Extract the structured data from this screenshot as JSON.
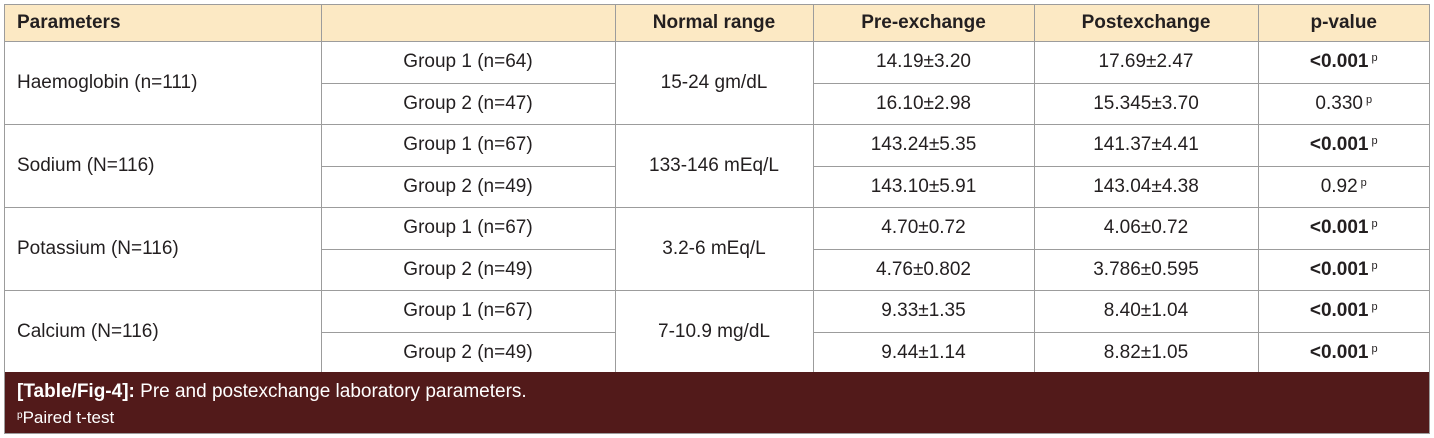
{
  "table": {
    "headers": [
      "Parameters",
      "",
      "Normal range",
      "Pre-exchange",
      "Postexchange",
      "p-value"
    ],
    "groups": [
      {
        "parameter": "Haemoglobin (n=111)",
        "normal_range": "15-24 gm/dL",
        "rows": [
          {
            "group": "Group 1 (n=64)",
            "pre": "14.19±3.20",
            "post": "17.69±2.47",
            "p": "<0.001",
            "significant": true,
            "mark": "p"
          },
          {
            "group": "Group 2 (n=47)",
            "pre": "16.10±2.98",
            "post": "15.345±3.70",
            "p": "0.330",
            "significant": false,
            "mark": "p"
          }
        ]
      },
      {
        "parameter": "Sodium (N=116)",
        "normal_range": "133-146 mEq/L",
        "rows": [
          {
            "group": "Group 1 (n=67)",
            "pre": "143.24±5.35",
            "post": "141.37±4.41",
            "p": "<0.001",
            "significant": true,
            "mark": "p"
          },
          {
            "group": "Group 2 (n=49)",
            "pre": "143.10±5.91",
            "post": "143.04±4.38",
            "p": "0.92",
            "significant": false,
            "mark": "p"
          }
        ]
      },
      {
        "parameter": "Potassium (N=116)",
        "normal_range": "3.2-6 mEq/L",
        "rows": [
          {
            "group": "Group 1 (n=67)",
            "pre": "4.70±0.72",
            "post": "4.06±0.72",
            "p": "<0.001",
            "significant": true,
            "mark": "p"
          },
          {
            "group": "Group 2 (n=49)",
            "pre": "4.76±0.802",
            "post": "3.786±0.595",
            "p": "<0.001",
            "significant": true,
            "mark": "p"
          }
        ]
      },
      {
        "parameter": "Calcium (N=116)",
        "normal_range": "7-10.9 mg/dL",
        "rows": [
          {
            "group": "Group 1 (n=67)",
            "pre": "9.33±1.35",
            "post": "8.40±1.04",
            "p": "<0.001",
            "significant": true,
            "mark": "p"
          },
          {
            "group": "Group 2 (n=49)",
            "pre": "9.44±1.14",
            "post": "8.82±1.05",
            "p": "<0.001",
            "significant": true,
            "mark": "p"
          }
        ]
      }
    ]
  },
  "caption": {
    "label": "[Table/Fig-4]:",
    "text": "Pre and postexchange laboratory parameters.",
    "note_mark": "p",
    "note_text": "Paired t-test"
  },
  "colors": {
    "header_bg": "#fce9c4",
    "caption_bg": "#521a1a",
    "border": "#9c9c9c"
  }
}
